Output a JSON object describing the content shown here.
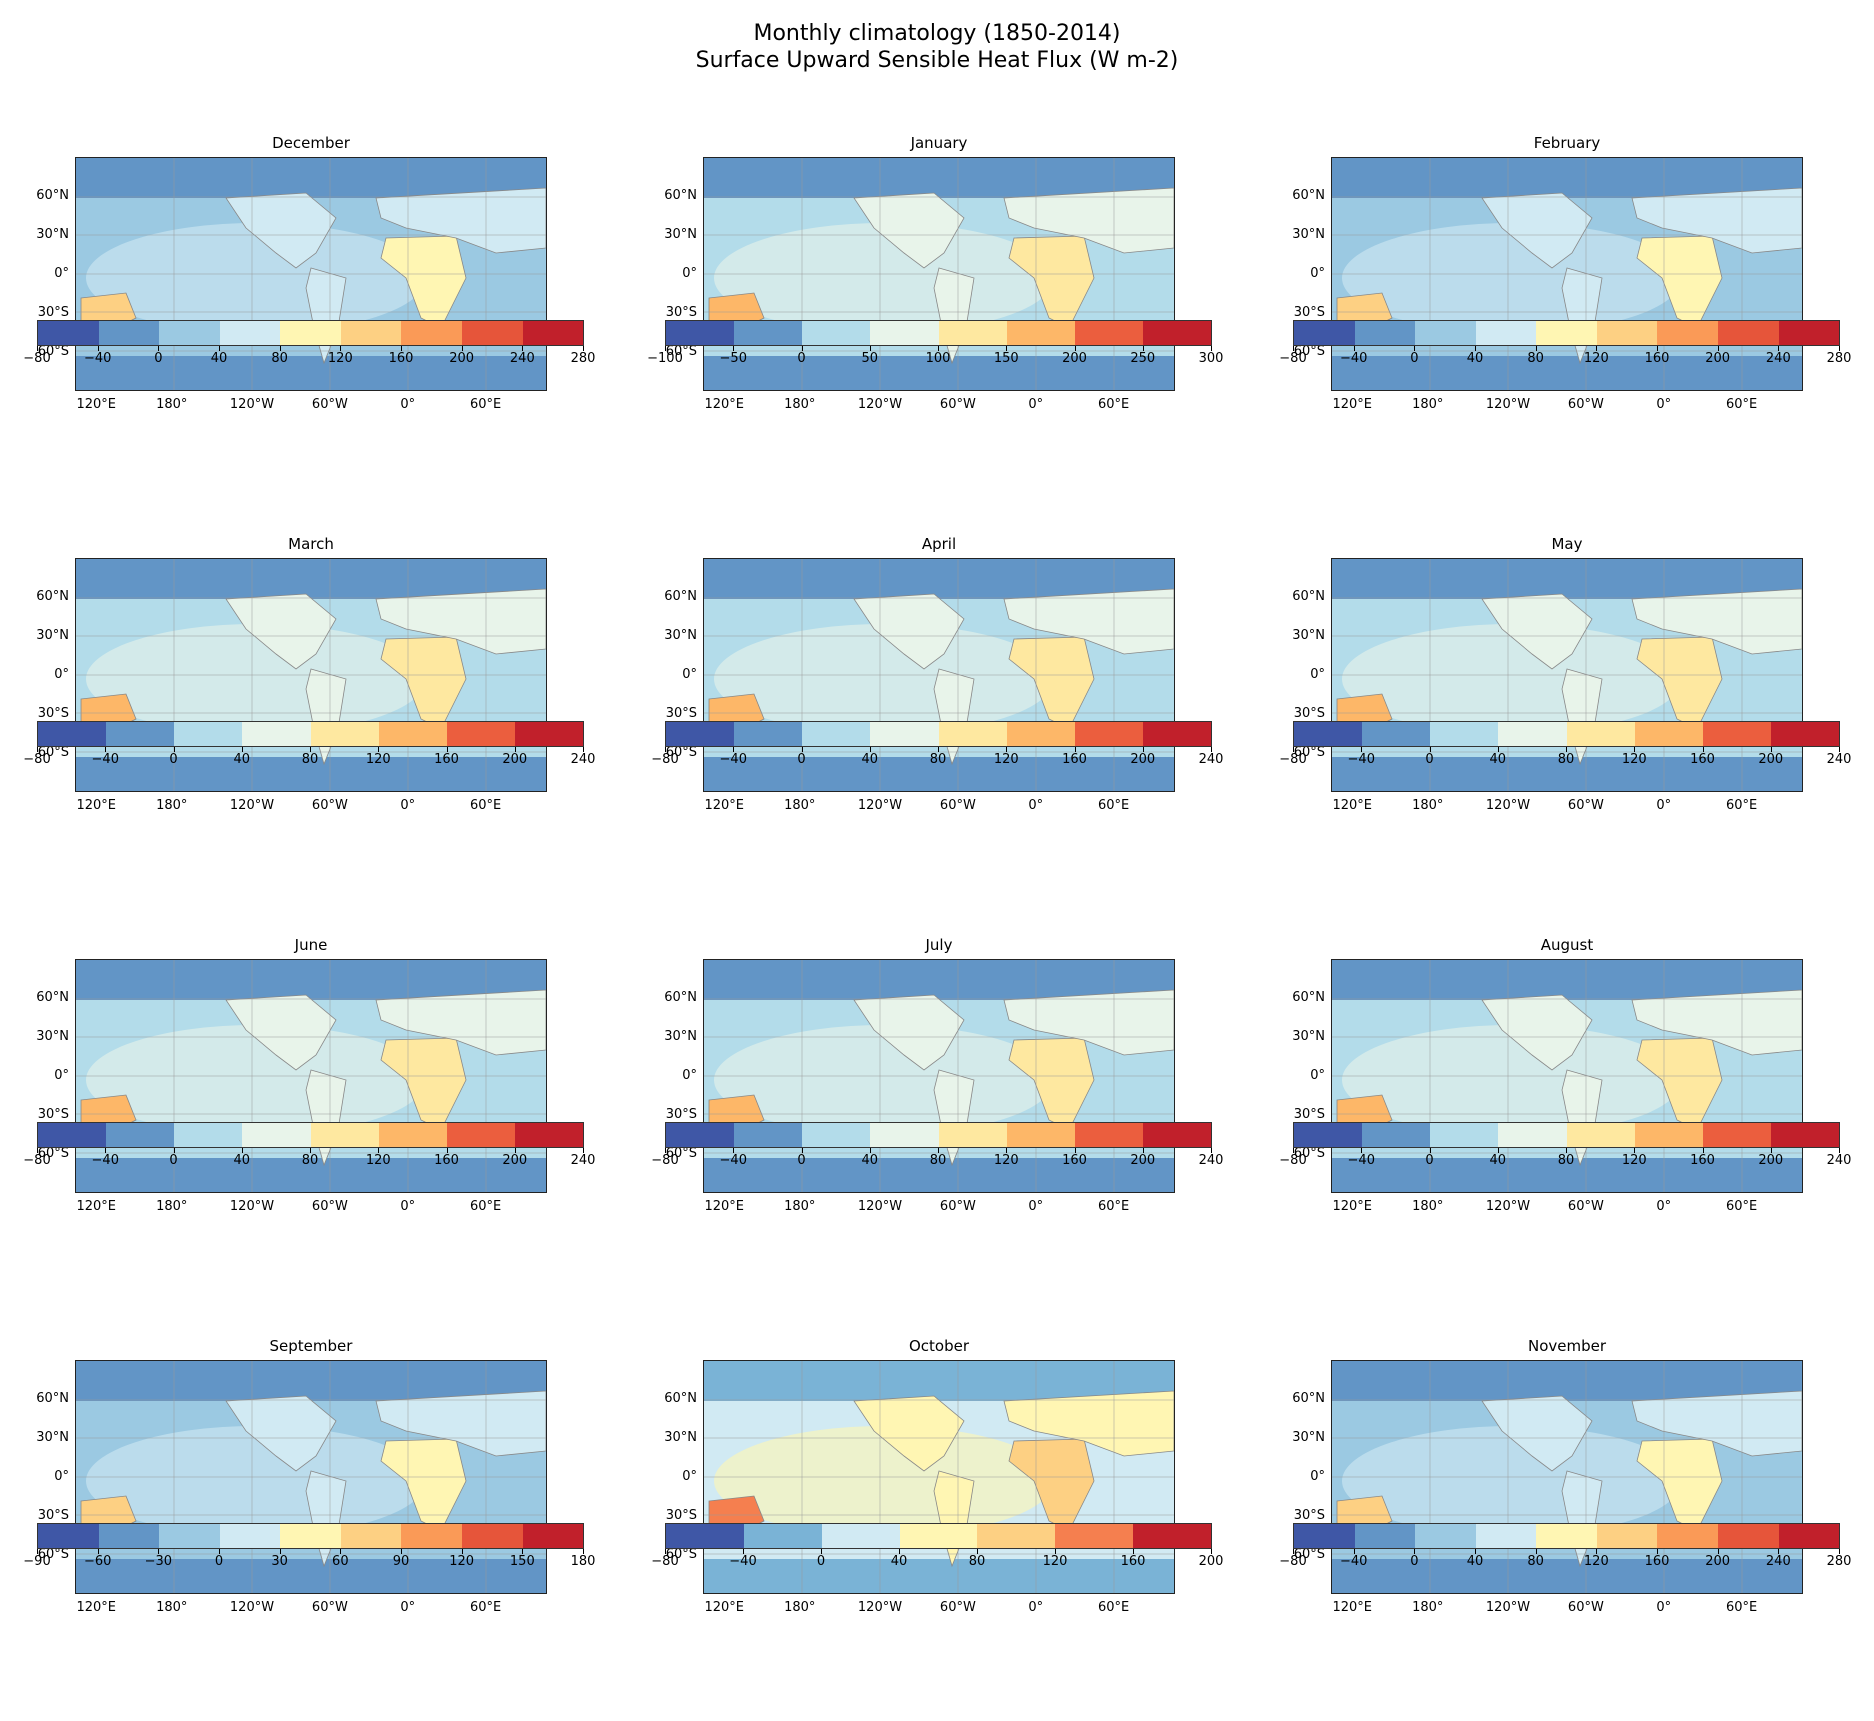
{
  "figure": {
    "title_line1": "Monthly climatology (1850-2014)",
    "title_line2": "Surface Upward Sensible Heat Flux (W m-2)"
  },
  "lat_labels": [
    "60°N",
    "30°N",
    "0°",
    "30°S",
    "60°S"
  ],
  "lon_labels": [
    "120°E",
    "180°",
    "120°W",
    "60°W",
    "0°",
    "60°E"
  ],
  "chart_data": [
    {
      "type": "heatmap",
      "title": "December",
      "colorbar_ticks": [
        "−80",
        "−40",
        "0",
        "40",
        "80",
        "120",
        "160",
        "200",
        "240",
        "280"
      ],
      "colors": [
        "#3f57a6",
        "#6295c6",
        "#9bc9e2",
        "#d1eaf3",
        "#fff6b3",
        "#fdd083",
        "#fa9a57",
        "#e6553a",
        "#c1202b"
      ]
    },
    {
      "type": "heatmap",
      "title": "January",
      "colorbar_ticks": [
        "−100",
        "−50",
        "0",
        "50",
        "100",
        "150",
        "200",
        "250",
        "300"
      ],
      "colors": [
        "#3f57a6",
        "#6295c6",
        "#b3dcea",
        "#e8f4ea",
        "#fee8a0",
        "#fdb768",
        "#eb5e3e",
        "#c1202b"
      ]
    },
    {
      "type": "heatmap",
      "title": "February",
      "colorbar_ticks": [
        "−80",
        "−40",
        "0",
        "40",
        "80",
        "120",
        "160",
        "200",
        "240",
        "280"
      ],
      "colors": [
        "#3f57a6",
        "#6295c6",
        "#9bc9e2",
        "#d1eaf3",
        "#fff6b3",
        "#fdd083",
        "#fa9a57",
        "#e6553a",
        "#c1202b"
      ]
    },
    {
      "type": "heatmap",
      "title": "March",
      "colorbar_ticks": [
        "−80",
        "−40",
        "0",
        "40",
        "80",
        "120",
        "160",
        "200",
        "240"
      ],
      "colors": [
        "#3f57a6",
        "#6295c6",
        "#b3dcea",
        "#e8f4ea",
        "#fee8a0",
        "#fdb768",
        "#eb5e3e",
        "#c1202b"
      ]
    },
    {
      "type": "heatmap",
      "title": "April",
      "colorbar_ticks": [
        "−80",
        "−40",
        "0",
        "40",
        "80",
        "120",
        "160",
        "200",
        "240"
      ],
      "colors": [
        "#3f57a6",
        "#6295c6",
        "#b3dcea",
        "#e8f4ea",
        "#fee8a0",
        "#fdb768",
        "#eb5e3e",
        "#c1202b"
      ]
    },
    {
      "type": "heatmap",
      "title": "May",
      "colorbar_ticks": [
        "−80",
        "−40",
        "0",
        "40",
        "80",
        "120",
        "160",
        "200",
        "240"
      ],
      "colors": [
        "#3f57a6",
        "#6295c6",
        "#b3dcea",
        "#e8f4ea",
        "#fee8a0",
        "#fdb768",
        "#eb5e3e",
        "#c1202b"
      ]
    },
    {
      "type": "heatmap",
      "title": "June",
      "colorbar_ticks": [
        "−80",
        "−40",
        "0",
        "40",
        "80",
        "120",
        "160",
        "200",
        "240"
      ],
      "colors": [
        "#3f57a6",
        "#6295c6",
        "#b3dcea",
        "#e8f4ea",
        "#fee8a0",
        "#fdb768",
        "#eb5e3e",
        "#c1202b"
      ]
    },
    {
      "type": "heatmap",
      "title": "July",
      "colorbar_ticks": [
        "−80",
        "−40",
        "0",
        "40",
        "80",
        "120",
        "160",
        "200",
        "240"
      ],
      "colors": [
        "#3f57a6",
        "#6295c6",
        "#b3dcea",
        "#e8f4ea",
        "#fee8a0",
        "#fdb768",
        "#eb5e3e",
        "#c1202b"
      ]
    },
    {
      "type": "heatmap",
      "title": "August",
      "colorbar_ticks": [
        "−80",
        "−40",
        "0",
        "40",
        "80",
        "120",
        "160",
        "200",
        "240"
      ],
      "colors": [
        "#3f57a6",
        "#6295c6",
        "#b3dcea",
        "#e8f4ea",
        "#fee8a0",
        "#fdb768",
        "#eb5e3e",
        "#c1202b"
      ]
    },
    {
      "type": "heatmap",
      "title": "September",
      "colorbar_ticks": [
        "−90",
        "−60",
        "−30",
        "0",
        "30",
        "60",
        "90",
        "120",
        "150",
        "180"
      ],
      "colors": [
        "#3f57a6",
        "#6295c6",
        "#9bc9e2",
        "#d1eaf3",
        "#fff6b3",
        "#fdd083",
        "#fa9a57",
        "#e6553a",
        "#c1202b"
      ]
    },
    {
      "type": "heatmap",
      "title": "October",
      "colorbar_ticks": [
        "−80",
        "−40",
        "0",
        "40",
        "80",
        "120",
        "160",
        "200"
      ],
      "colors": [
        "#3f57a6",
        "#7ab3d6",
        "#d1eaf3",
        "#fff6b3",
        "#fdd083",
        "#f57f4f",
        "#c1202b"
      ]
    },
    {
      "type": "heatmap",
      "title": "November",
      "colorbar_ticks": [
        "−80",
        "−40",
        "0",
        "40",
        "80",
        "120",
        "160",
        "200",
        "240",
        "280"
      ],
      "colors": [
        "#3f57a6",
        "#6295c6",
        "#9bc9e2",
        "#d1eaf3",
        "#fff6b3",
        "#fdd083",
        "#fa9a57",
        "#e6553a",
        "#c1202b"
      ]
    }
  ]
}
